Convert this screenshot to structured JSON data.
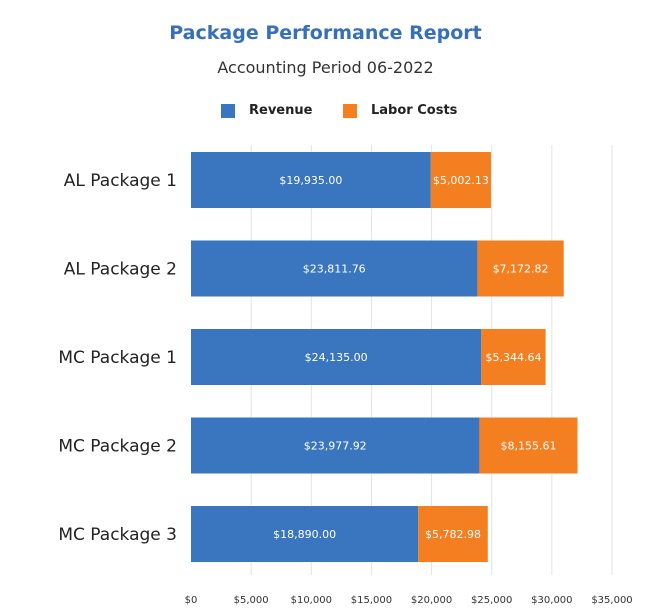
{
  "chart_data": {
    "type": "bar",
    "orientation": "horizontal",
    "stacked": true,
    "title": "Package Performance Report",
    "subtitle": "Accounting Period 06-2022",
    "categories": [
      "AL Package 1",
      "AL Package 2",
      "MC Package 1",
      "MC Package 2",
      "MC Package 3"
    ],
    "series": [
      {
        "name": "Revenue",
        "color": "#3a75bf",
        "values": [
          19935.0,
          23811.76,
          24135.0,
          23977.92,
          18890.0
        ],
        "labels": [
          "$19,935.00",
          "$23,811.76",
          "$24,135.00",
          "$23,977.92",
          "$18,890.00"
        ]
      },
      {
        "name": "Labor Costs",
        "color": "#f47f20",
        "values": [
          5002.13,
          7172.82,
          5344.64,
          8155.61,
          5782.98
        ],
        "labels": [
          "$5,002.13",
          "$7,172.82",
          "$5,344.64",
          "$8,155.61",
          "$5,782.98"
        ]
      }
    ],
    "xlim": [
      0,
      35000
    ],
    "x_ticks": [
      0,
      5000,
      10000,
      15000,
      20000,
      25000,
      30000,
      35000
    ],
    "x_tick_labels": [
      "$0",
      "$5,000",
      "$10,000",
      "$15,000",
      "$20,000",
      "$25,000",
      "$30,000",
      "$35,000"
    ],
    "grid": true,
    "legend_position": "top-center"
  }
}
